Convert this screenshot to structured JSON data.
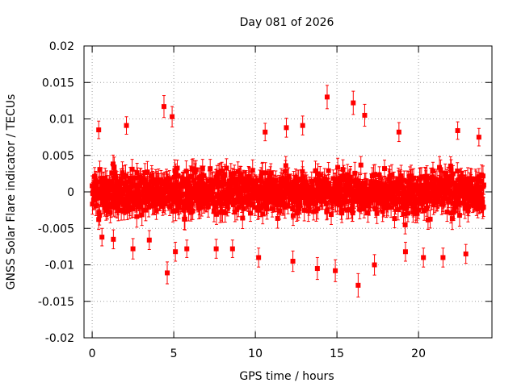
{
  "chart_data": {
    "type": "scatter",
    "title": "Day 081 of 2026",
    "xlabel": "GPS time / hours",
    "ylabel": "GNSS Solar Flare indicator / TECUs",
    "xlim": [
      -0.5,
      24.5
    ],
    "ylim": [
      -0.02,
      0.02
    ],
    "x_ticks": [
      0,
      5,
      10,
      15,
      20
    ],
    "x_tick_labels": [
      "0",
      "5",
      "10",
      "15",
      "20"
    ],
    "y_ticks": [
      -0.02,
      -0.015,
      -0.01,
      -0.005,
      0,
      0.005,
      0.01,
      0.015,
      0.02
    ],
    "y_tick_labels": [
      "-0.02",
      "-0.015",
      "-0.01",
      "-0.005",
      "0",
      "0.005",
      "0.01",
      "0.015",
      "0.02"
    ],
    "grid": true,
    "series_color": "#ff0000",
    "marker": "square",
    "error_bars": true,
    "series": [
      {
        "x_start": 0.0,
        "x_end": 24.0,
        "typical_range": [
          -0.006,
          0.006
        ],
        "points": [
          {
            "x": 0.4,
            "y": 0.0085,
            "err": 0.0012
          },
          {
            "x": 0.6,
            "y": -0.0062,
            "err": 0.0012
          },
          {
            "x": 1.3,
            "y": -0.0065,
            "err": 0.0013
          },
          {
            "x": 2.1,
            "y": 0.0091,
            "err": 0.0012
          },
          {
            "x": 2.5,
            "y": -0.0078,
            "err": 0.0014
          },
          {
            "x": 3.5,
            "y": -0.0066,
            "err": 0.0013
          },
          {
            "x": 4.4,
            "y": 0.0117,
            "err": 0.0015
          },
          {
            "x": 4.6,
            "y": -0.0111,
            "err": 0.0015
          },
          {
            "x": 4.9,
            "y": 0.0103,
            "err": 0.0014
          },
          {
            "x": 5.1,
            "y": -0.0082,
            "err": 0.0013
          },
          {
            "x": 5.8,
            "y": -0.0078,
            "err": 0.0012
          },
          {
            "x": 7.6,
            "y": -0.0078,
            "err": 0.0013
          },
          {
            "x": 8.6,
            "y": -0.0078,
            "err": 0.0012
          },
          {
            "x": 10.2,
            "y": -0.009,
            "err": 0.0013
          },
          {
            "x": 10.6,
            "y": 0.0082,
            "err": 0.0012
          },
          {
            "x": 11.9,
            "y": 0.0088,
            "err": 0.0013
          },
          {
            "x": 12.3,
            "y": -0.0095,
            "err": 0.0014
          },
          {
            "x": 12.9,
            "y": 0.0091,
            "err": 0.0013
          },
          {
            "x": 13.8,
            "y": -0.0105,
            "err": 0.0015
          },
          {
            "x": 14.4,
            "y": 0.013,
            "err": 0.0016
          },
          {
            "x": 14.9,
            "y": -0.0108,
            "err": 0.0015
          },
          {
            "x": 16.0,
            "y": 0.0122,
            "err": 0.0016
          },
          {
            "x": 16.3,
            "y": -0.0128,
            "err": 0.0016
          },
          {
            "x": 16.7,
            "y": 0.0105,
            "err": 0.0015
          },
          {
            "x": 17.3,
            "y": -0.01,
            "err": 0.0014
          },
          {
            "x": 18.8,
            "y": 0.0082,
            "err": 0.0013
          },
          {
            "x": 19.2,
            "y": -0.0082,
            "err": 0.0013
          },
          {
            "x": 20.3,
            "y": -0.009,
            "err": 0.0013
          },
          {
            "x": 21.5,
            "y": -0.009,
            "err": 0.0013
          },
          {
            "x": 22.4,
            "y": 0.0084,
            "err": 0.0012
          },
          {
            "x": 22.9,
            "y": -0.0085,
            "err": 0.0013
          },
          {
            "x": 23.7,
            "y": 0.0075,
            "err": 0.0012
          }
        ]
      }
    ]
  }
}
